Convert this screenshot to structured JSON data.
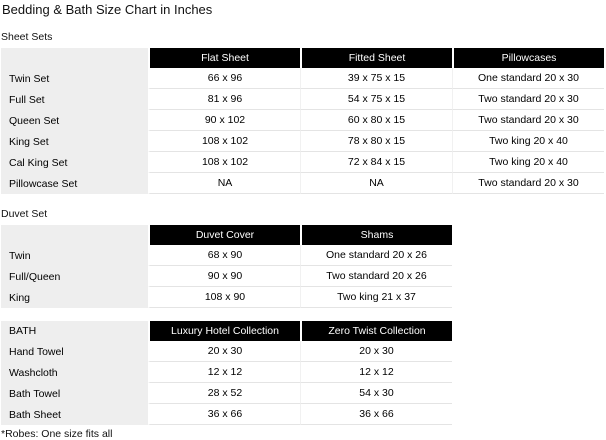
{
  "title": "Bedding & Bath Size Chart in Inches",
  "footnote": "*Robes: One size fits all",
  "colors": {
    "header_bg": "#000000",
    "header_text": "#ffffff",
    "label_column_bg": "#eeeeee",
    "row_border": "#e4e4e4",
    "page_bg": "#ffffff"
  },
  "chart_data": [
    {
      "type": "table",
      "title": "Sheet Sets",
      "corner_label": "",
      "columns": [
        "Flat Sheet",
        "Fitted Sheet",
        "Pillowcases"
      ],
      "rows": [
        {
          "label": "Twin Set",
          "values": [
            "66 x 96",
            "39 x 75 x 15",
            "One standard 20 x 30"
          ]
        },
        {
          "label": "Full Set",
          "values": [
            "81 x 96",
            "54 x 75 x 15",
            "Two standard 20 x 30"
          ]
        },
        {
          "label": "Queen Set",
          "values": [
            "90 x 102",
            "60 x 80 x 15",
            "Two standard 20 x 30"
          ]
        },
        {
          "label": "King Set",
          "values": [
            "108 x 102",
            "78 x 80 x 15",
            "Two king 20 x 40"
          ]
        },
        {
          "label": "Cal King Set",
          "values": [
            "108 x 102",
            "72 x 84 x 15",
            "Two king 20 x 40"
          ]
        },
        {
          "label": "Pillowcase Set",
          "values": [
            "NA",
            "NA",
            "Two standard 20 x 30"
          ]
        }
      ]
    },
    {
      "type": "table",
      "title": "Duvet Set",
      "corner_label": "",
      "columns": [
        "Duvet Cover",
        "Shams"
      ],
      "rows": [
        {
          "label": "Twin",
          "values": [
            "68 x 90",
            "One standard 20 x 26"
          ]
        },
        {
          "label": "Full/Queen",
          "values": [
            "90 x 90",
            "Two standard 20 x 26"
          ]
        },
        {
          "label": "King",
          "values": [
            "108 x 90",
            "Two king 21 x 37"
          ]
        }
      ]
    },
    {
      "type": "table",
      "title": "",
      "corner_label": "BATH",
      "columns": [
        "Luxury Hotel Collection",
        "Zero Twist Collection"
      ],
      "rows": [
        {
          "label": "Hand Towel",
          "values": [
            "20 x 30",
            "20 x 30"
          ]
        },
        {
          "label": "Washcloth",
          "values": [
            "12 x 12",
            "12 x 12"
          ]
        },
        {
          "label": "Bath Towel",
          "values": [
            "28 x 52",
            "54 x 30"
          ]
        },
        {
          "label": "Bath Sheet",
          "values": [
            "36 x 66",
            "36 x 66"
          ]
        }
      ]
    }
  ]
}
